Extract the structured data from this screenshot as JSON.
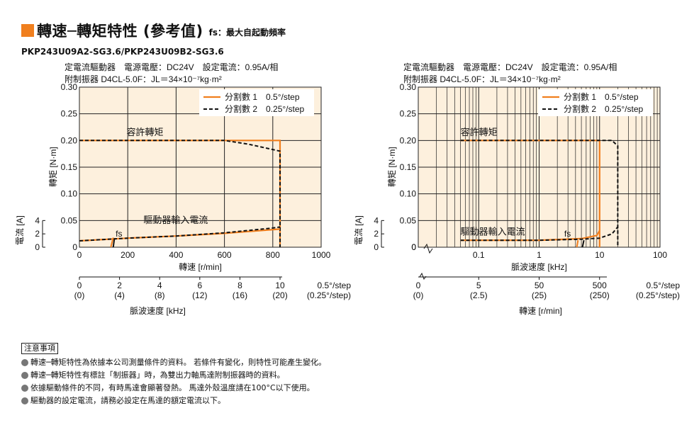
{
  "page": {
    "title": "轉速─轉矩特性 (參考值)",
    "subtitle": "fs：最大自起動頻率",
    "model": "PKP243U09A2-SG3.6/PKP243U09B2-SG3.6",
    "notes_header": "注意事項",
    "notes": [
      "轉速─轉矩特性為依據本公司測量條件的資料。 若條件有變化，則特性可能產生變化。",
      "轉速─轉矩特性有標註「制振器」時，為雙出力軸馬達附制振器時的資料。",
      "依據驅動條件的不同，有時馬達會顯著發熱。 馬達外殼溫度請在100°C以下使用。",
      "驅動器的設定電流，請務必設定在馬達的額定電流以下。"
    ]
  },
  "colors": {
    "accent": "#f07f1e",
    "plot_bg": "#fdf0dd",
    "grid": "#222222",
    "line": "#f07f1e",
    "dashed": "#111111"
  },
  "chart_data": [
    {
      "type": "line",
      "xscale": "linear",
      "cond1": "定電流驅動器　電源電壓：DC24V　設定電流：0.95A/相",
      "cond2": "附制振器 D4CL-5.0F：JL＝34×10⁻⁷kg·m²",
      "xlabel": "轉速 [r/min]",
      "ylabel": "轉矩 [N·m]",
      "ylabel2": "電流 [A]",
      "xlim": [
        0,
        1000
      ],
      "ylim": [
        0,
        0.3
      ],
      "xticks": [
        "0",
        "200",
        "400",
        "600",
        "800",
        "1000"
      ],
      "yticks": [
        "0",
        "0.05",
        "0.10",
        "0.15",
        "0.20",
        "0.25",
        "0.30"
      ],
      "y2ticks": [
        "0",
        "2",
        "4"
      ],
      "legend": [
        {
          "name": "分割數 1　0.5°/step",
          "style": "solid"
        },
        {
          "name": "分割數 2　0.25°/step",
          "style": "dashed"
        }
      ],
      "annotations": {
        "torque": "容許轉矩",
        "current": "驅動器輸入電流",
        "fs": "fs"
      },
      "freq_axis": {
        "label": "脈波速度 [kHz]",
        "ticks": [
          [
            "0",
            "(0)"
          ],
          [
            "2",
            "(4)"
          ],
          [
            "4",
            "(8)"
          ],
          [
            "6",
            "(12)"
          ],
          [
            "8",
            "(16)"
          ],
          [
            "10",
            "(20)"
          ]
        ],
        "end": [
          "0.5°/step",
          "(0.25°/step)"
        ]
      },
      "series": [
        {
          "name": "分割數 1　0.5°/step",
          "x": [
            0,
            730,
            830,
            830
          ],
          "y": [
            0.2,
            0.2,
            0.2,
            0
          ]
        },
        {
          "name": "分割數 2　0.25°/step",
          "x": [
            0,
            600,
            700,
            780,
            830,
            830
          ],
          "y": [
            0.2,
            0.2,
            0.193,
            0.185,
            0.18,
            0
          ]
        },
        {
          "name": "驅動器輸入電流 1",
          "x": [
            0,
            200,
            400,
            600,
            830
          ],
          "y": [
            0.012,
            0.017,
            0.021,
            0.026,
            0.034
          ]
        },
        {
          "name": "驅動器輸入電流 2",
          "x": [
            0,
            200,
            400,
            600,
            800,
            830
          ],
          "y": [
            0.012,
            0.017,
            0.021,
            0.027,
            0.036,
            0.038
          ]
        }
      ]
    },
    {
      "type": "line",
      "xscale": "log",
      "cond1": "定電流驅動器　電源電壓：DC24V　設定電流：0.95A/相",
      "cond2": "附制振器 D4CL-5.0F：JL＝34×10⁻⁷kg·m²",
      "xlabel": "脈波速度 [kHz]",
      "ylabel": "轉矩 [N·m]",
      "ylabel2": "電流 [A]",
      "xlim": [
        0.01,
        100
      ],
      "ylim": [
        0,
        0.3
      ],
      "xticks": [
        "0.1",
        "1",
        "10",
        "100"
      ],
      "yticks": [
        "0",
        "0.05",
        "0.10",
        "0.15",
        "0.20",
        "0.25",
        "0.30"
      ],
      "y2ticks": [
        "0",
        "2",
        "4"
      ],
      "legend": [
        {
          "name": "分割數 1　0.5°/step",
          "style": "solid"
        },
        {
          "name": "分割數 2　0.25°/step",
          "style": "dashed"
        }
      ],
      "annotations": {
        "torque": "容許轉矩",
        "current": "驅動器輸入電流",
        "fs": "fs",
        "zero": "0"
      },
      "speed_axis": {
        "label": "轉速 [r/min]",
        "ticks": [
          [
            "5",
            "(2.5)"
          ],
          [
            "50",
            "(25)"
          ],
          [
            "500",
            "(250)"
          ]
        ],
        "zero": [
          "0",
          "(0)"
        ],
        "end": [
          "0.5°/step",
          "(0.25°/step)"
        ]
      },
      "series": [
        {
          "name": "分割數 1　0.5°/step",
          "x": [
            0.05,
            10,
            10
          ],
          "y": [
            0.2,
            0.2,
            0
          ]
        },
        {
          "name": "分割數 2　0.25°/step",
          "x": [
            0.05,
            16,
            20,
            20
          ],
          "y": [
            0.2,
            0.2,
            0.19,
            0
          ]
        },
        {
          "name": "驅動器輸入電流 1",
          "x": [
            0.05,
            1,
            5,
            9,
            10
          ],
          "y": [
            0.013,
            0.013,
            0.016,
            0.022,
            0.031
          ]
        },
        {
          "name": "驅動器輸入電流 2",
          "x": [
            0.05,
            1,
            5,
            10,
            16,
            20
          ],
          "y": [
            0.013,
            0.013,
            0.015,
            0.017,
            0.025,
            0.038
          ]
        }
      ]
    }
  ]
}
